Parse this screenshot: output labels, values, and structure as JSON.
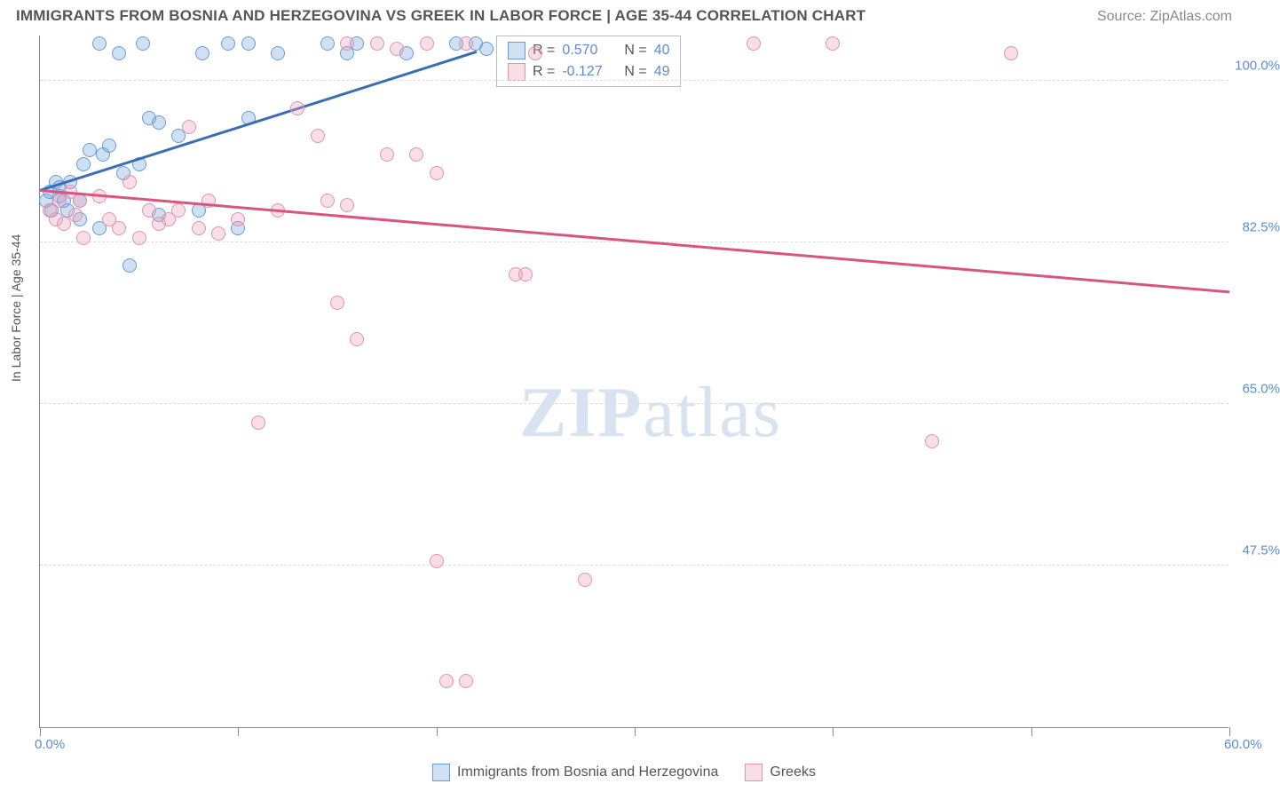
{
  "title": "IMMIGRANTS FROM BOSNIA AND HERZEGOVINA VS GREEK IN LABOR FORCE | AGE 35-44 CORRELATION CHART",
  "source_label": "Source: ",
  "source_name": "ZipAtlas.com",
  "ylabel": "In Labor Force | Age 35-44",
  "watermark_zip": "ZIP",
  "watermark_atlas": "atlas",
  "chart": {
    "type": "scatter",
    "xlim": [
      0,
      60
    ],
    "ylim": [
      30,
      105
    ],
    "x_ticks": [
      0,
      10,
      20,
      30,
      40,
      50,
      60
    ],
    "x_tick_labels": [
      "0.0%",
      "",
      "",
      "",
      "",
      "",
      "60.0%"
    ],
    "y_ticks": [
      47.5,
      65.0,
      82.5,
      100.0
    ],
    "y_tick_labels": [
      "47.5%",
      "65.0%",
      "82.5%",
      "100.0%"
    ],
    "background": "#ffffff",
    "grid_color": "#dddddd",
    "axis_color": "#888888",
    "label_color": "#5b8dd6",
    "text_color": "#555555",
    "series": [
      {
        "name": "Immigrants from Bosnia and Herzegovina",
        "color_fill": "rgba(120,165,220,0.35)",
        "color_stroke": "#6a9bd8",
        "trend_color": "#3b6db5",
        "r_value": "0.570",
        "n_value": "40",
        "trend": {
          "x1": 0,
          "y1": 88,
          "x2": 22,
          "y2": 103
        },
        "points": [
          [
            0.3,
            87
          ],
          [
            0.5,
            88
          ],
          [
            0.6,
            86
          ],
          [
            0.8,
            89
          ],
          [
            1.0,
            87.5
          ],
          [
            1.0,
            88.5
          ],
          [
            1.2,
            87
          ],
          [
            1.4,
            86
          ],
          [
            1.5,
            89
          ],
          [
            2.0,
            85
          ],
          [
            2.0,
            87
          ],
          [
            2.2,
            91
          ],
          [
            2.5,
            92.5
          ],
          [
            3.0,
            104
          ],
          [
            3.0,
            84
          ],
          [
            3.2,
            92
          ],
          [
            3.5,
            93
          ],
          [
            4.0,
            103
          ],
          [
            4.2,
            90
          ],
          [
            4.5,
            80
          ],
          [
            5.0,
            91
          ],
          [
            5.2,
            104
          ],
          [
            5.5,
            96
          ],
          [
            6.0,
            95.5
          ],
          [
            6.0,
            85.5
          ],
          [
            7.0,
            94
          ],
          [
            8.0,
            86
          ],
          [
            8.2,
            103
          ],
          [
            9.5,
            104
          ],
          [
            10.0,
            84
          ],
          [
            10.5,
            104
          ],
          [
            10.5,
            96
          ],
          [
            12.0,
            103
          ],
          [
            14.5,
            104
          ],
          [
            15.5,
            103
          ],
          [
            16.0,
            104
          ],
          [
            18.5,
            103
          ],
          [
            21.0,
            104
          ],
          [
            22.0,
            104
          ],
          [
            22.5,
            103.5
          ]
        ]
      },
      {
        "name": "Greeks",
        "color_fill": "rgba(235,160,185,0.35)",
        "color_stroke": "#e392af",
        "trend_color": "#d9557f",
        "r_value": "-0.127",
        "n_value": "49",
        "trend": {
          "x1": 0,
          "y1": 88,
          "x2": 60,
          "y2": 77
        },
        "points": [
          [
            0.5,
            86
          ],
          [
            0.8,
            85
          ],
          [
            1.0,
            87
          ],
          [
            1.2,
            84.5
          ],
          [
            1.5,
            88
          ],
          [
            1.8,
            85.5
          ],
          [
            2.0,
            87
          ],
          [
            2.2,
            83
          ],
          [
            3.0,
            87.5
          ],
          [
            3.5,
            85
          ],
          [
            4.0,
            84
          ],
          [
            4.5,
            89
          ],
          [
            5.0,
            83
          ],
          [
            5.5,
            86
          ],
          [
            6.0,
            84.5
          ],
          [
            6.5,
            85
          ],
          [
            7.0,
            86
          ],
          [
            7.5,
            95
          ],
          [
            8.0,
            84
          ],
          [
            8.5,
            87
          ],
          [
            9.0,
            83.5
          ],
          [
            10.0,
            85
          ],
          [
            11.0,
            63
          ],
          [
            12.0,
            86
          ],
          [
            13.0,
            97
          ],
          [
            14.0,
            94
          ],
          [
            14.5,
            87
          ],
          [
            15.0,
            76
          ],
          [
            15.5,
            86.5
          ],
          [
            15.5,
            104
          ],
          [
            16.0,
            72
          ],
          [
            17.0,
            104
          ],
          [
            17.5,
            92
          ],
          [
            18.0,
            103.5
          ],
          [
            19.0,
            92
          ],
          [
            19.5,
            104
          ],
          [
            20.0,
            48
          ],
          [
            20.5,
            35
          ],
          [
            21.5,
            104
          ],
          [
            21.5,
            35
          ],
          [
            20.0,
            90
          ],
          [
            24.0,
            79
          ],
          [
            24.5,
            79
          ],
          [
            25.0,
            103
          ],
          [
            27.5,
            46
          ],
          [
            36.0,
            104
          ],
          [
            40.0,
            104
          ],
          [
            45.0,
            61
          ],
          [
            49.0,
            103
          ]
        ]
      }
    ],
    "legend_stats": {
      "r_label": "R =",
      "n_label": "N ="
    }
  }
}
